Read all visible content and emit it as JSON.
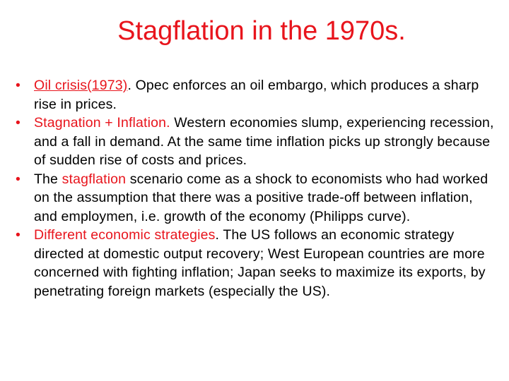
{
  "slide": {
    "title": "Stagflation in the 1970s.",
    "colors": {
      "accent": "#e8141c",
      "text": "#000000",
      "background": "#ffffff"
    },
    "bullets": [
      {
        "marker": "•",
        "highlight": "Oil crisis(1973)",
        "text": ". Opec enforces an oil embargo, which produces a sharp rise in prices."
      },
      {
        "marker": "•",
        "highlight": "Stagnation + Inflation.",
        "text": " Western economies slump, experiencing recession, and a fall in demand. At the same time inflation picks up strongly because of sudden rise of costs and prices."
      },
      {
        "marker": "•",
        "lead": "The ",
        "highlight": "stagflation",
        "text": " scenario come as a shock to economists who had worked on the assumption that there was a positive trade-off between inflation, and employmen, i.e. growth of the economy (Philipps curve)."
      },
      {
        "marker": "•",
        "highlight": "Different economic strategies",
        "text": ". The US follows an economic strategy directed at domestic output recovery; West European countries are more concerned with fighting inflation; Japan seeks to maximize its exports, by penetrating foreign markets (especially the US)."
      }
    ]
  }
}
